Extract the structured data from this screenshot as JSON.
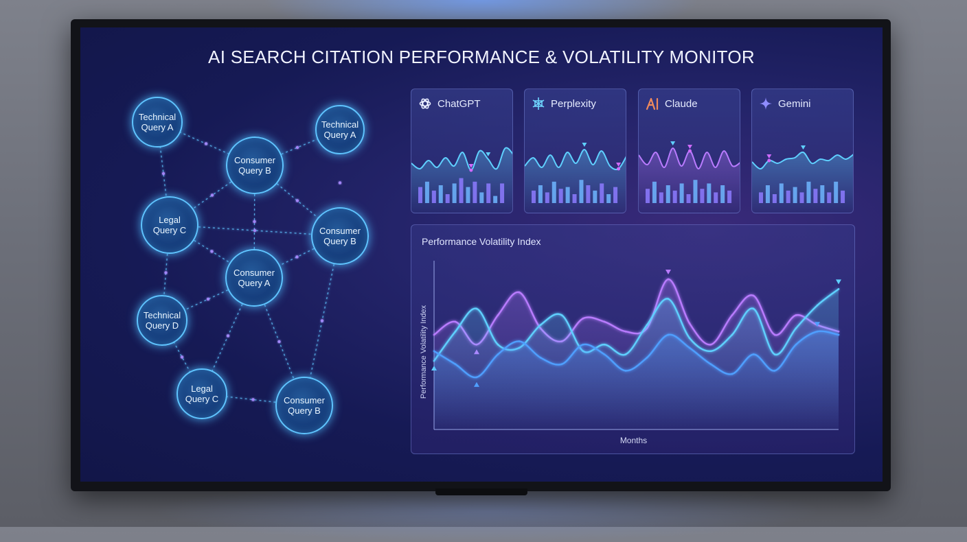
{
  "dashboard": {
    "title": "AI SEARCH CITATION PERFORMANCE & VOLATILITY MONITOR"
  },
  "query_graph": {
    "nodes": [
      {
        "id": "n1",
        "label": "Technical\nQuery A"
      },
      {
        "id": "n2",
        "label": "Consumer\nQuery B"
      },
      {
        "id": "n3",
        "label": "Technical\nQuery A"
      },
      {
        "id": "n4",
        "label": "Legal\nQuery C"
      },
      {
        "id": "n5",
        "label": "Consumer\nQuery B"
      },
      {
        "id": "n6",
        "label": "Consumer\nQuery A"
      },
      {
        "id": "n7",
        "label": "Technical\nQuery D"
      },
      {
        "id": "n8",
        "label": "Legal\nQuery C"
      },
      {
        "id": "n9",
        "label": "Consumer\nQuery B"
      }
    ],
    "edges": [
      [
        "n1",
        "n2"
      ],
      [
        "n1",
        "n4"
      ],
      [
        "n2",
        "n3"
      ],
      [
        "n2",
        "n4"
      ],
      [
        "n2",
        "n5"
      ],
      [
        "n2",
        "n6"
      ],
      [
        "n3",
        "n5"
      ],
      [
        "n4",
        "n5"
      ],
      [
        "n4",
        "n6"
      ],
      [
        "n4",
        "n7"
      ],
      [
        "n5",
        "n6"
      ],
      [
        "n5",
        "n9"
      ],
      [
        "n6",
        "n7"
      ],
      [
        "n6",
        "n8"
      ],
      [
        "n6",
        "n9"
      ],
      [
        "n7",
        "n8"
      ],
      [
        "n8",
        "n9"
      ]
    ]
  },
  "engines": [
    {
      "name": "ChatGPT",
      "icon": "chatgpt-knot-icon",
      "color": "#5fd0ff",
      "marker_color": "#d06bff"
    },
    {
      "name": "Perplexity",
      "icon": "perplexity-asterisk-icon",
      "color": "#5fd0ff",
      "marker_color": "#d06bff"
    },
    {
      "name": "Claude",
      "icon": "claude-a-icon",
      "color": "#b97bff",
      "marker_color": "#d06bff"
    },
    {
      "name": "Gemini",
      "icon": "gemini-sparkle-icon",
      "color": "#5fd0ff",
      "marker_color": "#d06bff"
    }
  ],
  "volatility_panel": {
    "title": "Performance Volatility Index",
    "ylabel": "Performance Volatility Index",
    "xlabel": "Months"
  },
  "chart_data": {
    "type": "line",
    "title": "Performance Volatility Index",
    "xlabel": "Months",
    "ylabel": "Performance Volatility Index",
    "x": [
      0,
      1,
      2,
      3,
      4,
      5,
      6,
      7,
      8,
      9,
      10,
      11,
      12,
      13,
      14,
      15,
      16,
      17,
      18,
      19
    ],
    "series": [
      {
        "values": [
          58,
          66,
          52,
          70,
          84,
          62,
          54,
          68,
          66,
          60,
          62,
          92,
          65,
          52,
          70,
          82,
          58,
          70,
          64,
          60
        ]
      },
      {
        "values": [
          42,
          60,
          74,
          52,
          50,
          64,
          70,
          48,
          52,
          46,
          64,
          80,
          56,
          48,
          58,
          74,
          46,
          62,
          76,
          86
        ]
      },
      {
        "values": [
          48,
          40,
          32,
          46,
          54,
          44,
          40,
          52,
          46,
          36,
          44,
          58,
          50,
          40,
          34,
          46,
          36,
          52,
          60,
          58
        ]
      }
    ],
    "ylim": [
      0,
      100
    ],
    "grid": false
  }
}
